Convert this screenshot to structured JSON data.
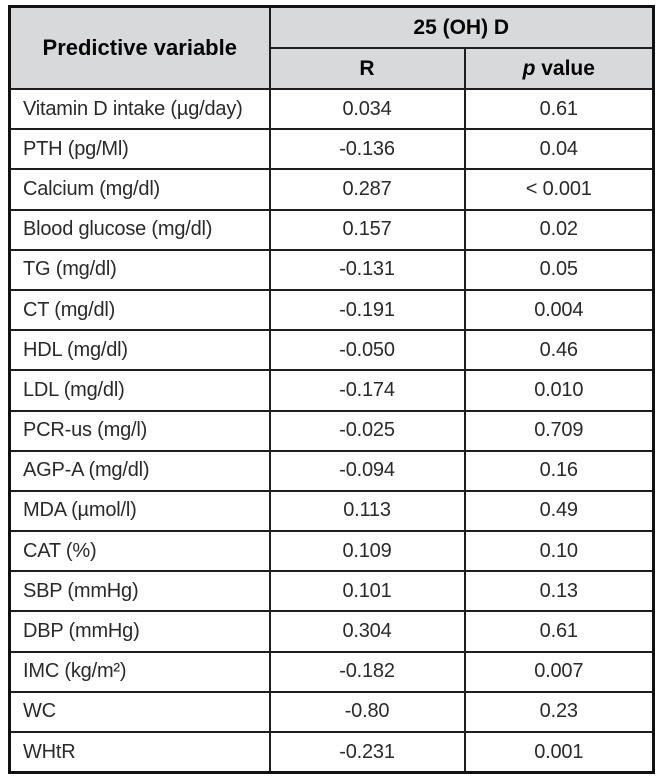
{
  "table": {
    "header": {
      "predictive_variable": "Predictive variable",
      "group": "25 (OH) D",
      "r": "R",
      "p_italic": "p",
      "p_rest": " value"
    },
    "rows": [
      {
        "variable": "Vitamin D intake (µg/day)",
        "r": "0.034",
        "p": "0.61"
      },
      {
        "variable": "PTH (pg/Ml)",
        "r": "-0.136",
        "p": "0.04"
      },
      {
        "variable": "Calcium (mg/dl)",
        "r": "0.287",
        "p": "< 0.001"
      },
      {
        "variable": "Blood glucose (mg/dl)",
        "r": "0.157",
        "p": "0.02"
      },
      {
        "variable": "TG (mg/dl)",
        "r": "-0.131",
        "p": "0.05"
      },
      {
        "variable": "CT (mg/dl)",
        "r": "-0.191",
        "p": "0.004"
      },
      {
        "variable": "HDL (mg/dl)",
        "r": "-0.050",
        "p": "0.46"
      },
      {
        "variable": "LDL (mg/dl)",
        "r": "-0.174",
        "p": "0.010"
      },
      {
        "variable": "PCR-us (mg/l)",
        "r": "-0.025",
        "p": "0.709"
      },
      {
        "variable": "AGP-A (mg/dl)",
        "r": "-0.094",
        "p": "0.16"
      },
      {
        "variable": "MDA (µmol/l)",
        "r": "0.113",
        "p": "0.49"
      },
      {
        "variable": "CAT (%)",
        "r": "0.109",
        "p": "0.10"
      },
      {
        "variable": "SBP (mmHg)",
        "r": "0.101",
        "p": "0.13"
      },
      {
        "variable": "DBP (mmHg)",
        "r": "0.304",
        "p": "0.61"
      },
      {
        "variable": "IMC (kg/m²)",
        "r": "-0.182",
        "p": "0.007"
      },
      {
        "variable": "WC",
        "r": "-0.80",
        "p": "0.23"
      },
      {
        "variable": "WHtR",
        "r": "-0.231",
        "p": "0.001"
      }
    ],
    "colors": {
      "header_background": "#d8d9db",
      "border": "#1e1e1e",
      "text": "#2a2a2a"
    }
  }
}
